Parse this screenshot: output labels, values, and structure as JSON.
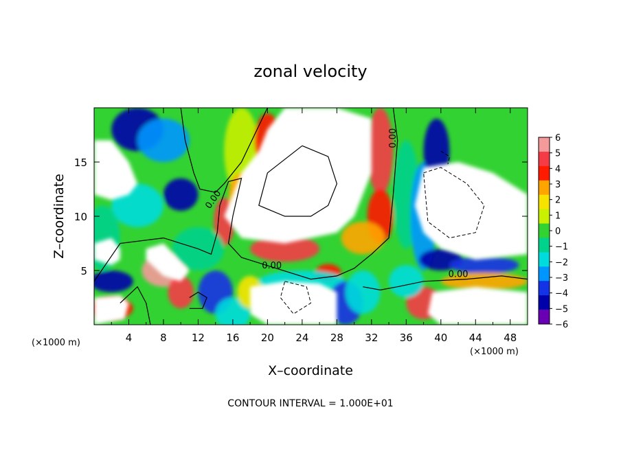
{
  "chart_data": {
    "type": "heatmap",
    "title": "zonal velocity",
    "xlabel": "X–coordinate",
    "ylabel": "Z–coordinate",
    "x_units_left": "(×1000 m)",
    "x_units_right": "(×1000 m)",
    "footer": "CONTOUR INTERVAL = 1.000E+01",
    "xlim": [
      0,
      50
    ],
    "ylim": [
      0,
      20
    ],
    "x_ticks": [
      4,
      8,
      12,
      16,
      20,
      24,
      28,
      32,
      36,
      40,
      44,
      48
    ],
    "x_tick_labels": [
      "4",
      "8",
      "12",
      "16",
      "20",
      "24",
      "28",
      "32",
      "36",
      "40",
      "44",
      "48"
    ],
    "y_ticks": [
      5,
      10,
      15
    ],
    "y_tick_labels": [
      "5",
      "10",
      "15"
    ],
    "colorbar": {
      "levels": [
        6,
        5,
        4,
        3,
        2,
        1,
        0,
        -1,
        -2,
        -3,
        -4,
        -5,
        -6
      ],
      "labels": [
        "6",
        "5",
        "4",
        "3",
        "2",
        "1",
        "0",
        "−1",
        "−2",
        "−3",
        "−4",
        "−5",
        "−6"
      ],
      "colors": [
        "#f59a9a",
        "#f53c46",
        "#ff1a00",
        "#ffa500",
        "#f6e400",
        "#c8f000",
        "#32d232",
        "#00d28c",
        "#00dcdc",
        "#0096ff",
        "#1432e6",
        "#0000aa",
        "#6a00b4"
      ]
    },
    "contour_labels": [
      {
        "text": "0.00",
        "x": 14,
        "z": 11.4
      },
      {
        "text": "0.00",
        "x": 20.5,
        "z": 5.2
      },
      {
        "text": "0.00",
        "x": 34.8,
        "z": 17.2
      },
      {
        "text": "0.00",
        "x": 42,
        "z": 4.4
      }
    ],
    "field_blobs": [
      {
        "x": 5,
        "z": 18,
        "v": -5,
        "sx": 3,
        "sz": 2
      },
      {
        "x": 8,
        "z": 17,
        "v": -3,
        "sx": 3,
        "sz": 2
      },
      {
        "x": 17,
        "z": 16,
        "v": 1,
        "sx": 2,
        "sz": 4
      },
      {
        "x": 20,
        "z": 17,
        "v": 4,
        "sx": 1.5,
        "sz": 2.5
      },
      {
        "x": 10,
        "z": 12,
        "v": -5,
        "sx": 2,
        "sz": 1.5
      },
      {
        "x": 5,
        "z": 11,
        "v": -2,
        "sx": 3,
        "sz": 2
      },
      {
        "x": 15,
        "z": 9.5,
        "v": 5,
        "sx": 1.2,
        "sz": 2.2
      },
      {
        "x": 17,
        "z": 12,
        "v": 3,
        "sx": 1.5,
        "sz": 2
      },
      {
        "x": 8,
        "z": 5,
        "v": 6,
        "sx": 2.5,
        "sz": 1.5
      },
      {
        "x": 10,
        "z": 3,
        "v": 5,
        "sx": 1.5,
        "sz": 1.5
      },
      {
        "x": 1,
        "z": 8,
        "v": -1,
        "sx": 2,
        "sz": 3
      },
      {
        "x": 2,
        "z": 4,
        "v": -5,
        "sx": 2.5,
        "sz": 1
      },
      {
        "x": 2,
        "z": 1.5,
        "v": 4,
        "sx": 2.5,
        "sz": 1
      },
      {
        "x": 12,
        "z": 7,
        "v": -1,
        "sx": 3,
        "sz": 2
      },
      {
        "x": 14,
        "z": 3,
        "v": -4,
        "sx": 2,
        "sz": 2
      },
      {
        "x": 16,
        "z": 1,
        "v": -2,
        "sx": 2,
        "sz": 1.5
      },
      {
        "x": 18,
        "z": 3,
        "v": 2,
        "sx": 1.5,
        "sz": 1.5
      },
      {
        "x": 22,
        "z": 7,
        "v": 5,
        "sx": 4,
        "sz": 1.2
      },
      {
        "x": 27,
        "z": 4.8,
        "v": 4,
        "sx": 1.5,
        "sz": 0.8
      },
      {
        "x": 24,
        "z": 4,
        "v": -2,
        "sx": 5,
        "sz": 1
      },
      {
        "x": 29,
        "z": 2,
        "v": -4,
        "sx": 2,
        "sz": 2
      },
      {
        "x": 31,
        "z": 3,
        "v": -2,
        "sx": 2,
        "sz": 2
      },
      {
        "x": 33,
        "z": 16,
        "v": 5,
        "sx": 1.5,
        "sz": 4
      },
      {
        "x": 33,
        "z": 10,
        "v": 4,
        "sx": 1.5,
        "sz": 2.5
      },
      {
        "x": 31,
        "z": 8,
        "v": 3,
        "sx": 2.5,
        "sz": 1.5
      },
      {
        "x": 36,
        "z": 12,
        "v": -1,
        "sx": 1.5,
        "sz": 5
      },
      {
        "x": 38,
        "z": 10,
        "v": -3,
        "sx": 1.5,
        "sz": 5
      },
      {
        "x": 39.5,
        "z": 16,
        "v": -5,
        "sx": 1.5,
        "sz": 3
      },
      {
        "x": 40,
        "z": 6,
        "v": -5,
        "sx": 2.5,
        "sz": 1
      },
      {
        "x": 45,
        "z": 5.5,
        "v": -4,
        "sx": 4,
        "sz": 0.8
      },
      {
        "x": 45,
        "z": 4,
        "v": 3,
        "sx": 5,
        "sz": 0.8
      },
      {
        "x": 38,
        "z": 2,
        "v": 5,
        "sx": 2,
        "sz": 1.5
      },
      {
        "x": 36,
        "z": 4,
        "v": -2,
        "sx": 2,
        "sz": 1.5
      }
    ],
    "white_regions": [
      [
        [
          0,
          17
        ],
        [
          2,
          17
        ],
        [
          4,
          15
        ],
        [
          5,
          13
        ],
        [
          4,
          12
        ],
        [
          2,
          11.5
        ],
        [
          0,
          12
        ]
      ],
      [
        [
          0,
          7.5
        ],
        [
          2,
          8
        ],
        [
          3,
          7
        ],
        [
          3,
          6
        ],
        [
          2,
          5.5
        ],
        [
          0,
          6
        ]
      ],
      [
        [
          0,
          2.5
        ],
        [
          3,
          2.7
        ],
        [
          4,
          2
        ],
        [
          3.5,
          0.5
        ],
        [
          0,
          0
        ]
      ],
      [
        [
          6,
          7
        ],
        [
          8,
          7.5
        ],
        [
          11,
          5
        ],
        [
          10,
          4
        ],
        [
          8,
          4.5
        ],
        [
          6,
          6
        ]
      ],
      [
        [
          20,
          18
        ],
        [
          22,
          20
        ],
        [
          28,
          20
        ],
        [
          32,
          19
        ],
        [
          32,
          14
        ],
        [
          30,
          10
        ],
        [
          28,
          8.5
        ],
        [
          22,
          7.5
        ],
        [
          17,
          8
        ],
        [
          15,
          10
        ],
        [
          17,
          14
        ],
        [
          19,
          16
        ]
      ],
      [
        [
          18,
          3.5
        ],
        [
          22,
          4
        ],
        [
          26,
          3.8
        ],
        [
          28,
          3
        ],
        [
          28,
          0
        ],
        [
          20,
          0
        ],
        [
          18,
          1
        ]
      ],
      [
        [
          38,
          14.5
        ],
        [
          42,
          15
        ],
        [
          46,
          14
        ],
        [
          50,
          12
        ],
        [
          50,
          6.5
        ],
        [
          44,
          6
        ],
        [
          40,
          7
        ],
        [
          38,
          8.5
        ],
        [
          37,
          11
        ]
      ],
      [
        [
          39,
          3
        ],
        [
          44,
          3.5
        ],
        [
          50,
          3
        ],
        [
          50,
          0
        ],
        [
          40,
          0
        ],
        [
          38.5,
          1
        ]
      ]
    ],
    "zero_contour_solid": [
      [
        [
          10,
          20
        ],
        [
          10.5,
          17
        ],
        [
          11.5,
          14
        ],
        [
          12.2,
          12.5
        ],
        [
          14,
          12.2
        ],
        [
          15,
          13
        ],
        [
          17,
          15
        ],
        [
          20,
          20
        ]
      ],
      [
        [
          0,
          4
        ],
        [
          3,
          7.5
        ],
        [
          8,
          8
        ],
        [
          12,
          7
        ],
        [
          13.5,
          6.5
        ],
        [
          14.2,
          8.5
        ],
        [
          14.5,
          11
        ],
        [
          15.5,
          13.2
        ],
        [
          17,
          13.5
        ],
        [
          16,
          10
        ],
        [
          15.5,
          7.5
        ],
        [
          17,
          6.2
        ],
        [
          21,
          5.2
        ],
        [
          25,
          4.2
        ],
        [
          28,
          4.5
        ],
        [
          30,
          5.2
        ],
        [
          32,
          6.5
        ],
        [
          34,
          8
        ],
        [
          34.5,
          12
        ],
        [
          35,
          17
        ],
        [
          34.5,
          20
        ]
      ],
      [
        [
          3,
          2
        ],
        [
          5,
          3.5
        ],
        [
          6,
          2
        ],
        [
          6.5,
          0
        ]
      ],
      [
        [
          11,
          2.5
        ],
        [
          12,
          3
        ],
        [
          13,
          2.5
        ],
        [
          12.5,
          1.5
        ],
        [
          11,
          1.5
        ]
      ],
      [
        [
          31,
          3.5
        ],
        [
          33,
          3.2
        ],
        [
          35,
          3.5
        ],
        [
          38,
          4
        ],
        [
          43,
          4.2
        ],
        [
          47,
          4.5
        ],
        [
          50,
          4.2
        ]
      ],
      [
        [
          24,
          16.5
        ],
        [
          27,
          15.5
        ],
        [
          28,
          13
        ],
        [
          27,
          11
        ],
        [
          25,
          10
        ],
        [
          22,
          10
        ],
        [
          19,
          11
        ],
        [
          20,
          14
        ],
        [
          24,
          16.5
        ]
      ]
    ],
    "dashed_contours": [
      [
        [
          22,
          4
        ],
        [
          24.5,
          3.5
        ],
        [
          25,
          2
        ],
        [
          23,
          1
        ],
        [
          21.5,
          2.5
        ],
        [
          22,
          4
        ]
      ],
      [
        [
          38,
          14
        ],
        [
          40,
          14.5
        ],
        [
          43,
          13
        ],
        [
          45,
          11
        ],
        [
          44,
          8.5
        ],
        [
          41,
          8
        ],
        [
          38.5,
          9.5
        ],
        [
          38,
          14
        ]
      ],
      [
        [
          40,
          16
        ],
        [
          41,
          15.5
        ],
        [
          40.8,
          14.8
        ]
      ]
    ]
  }
}
